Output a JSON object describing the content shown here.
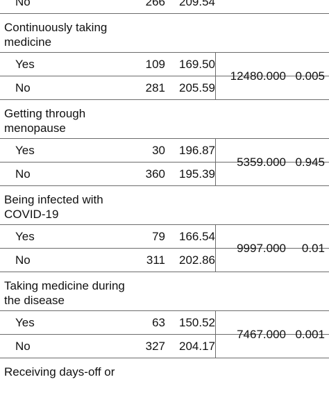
{
  "rows": [
    {
      "type": "sub",
      "label": "No",
      "n": "266",
      "rank": "209.54"
    },
    {
      "type": "cat",
      "label": "Continuously taking medicine"
    },
    {
      "type": "sub",
      "label": "Yes",
      "n": "109",
      "rank": "169.50"
    },
    {
      "type": "sub",
      "label": "No",
      "n": "281",
      "rank": "205.59"
    },
    {
      "type": "cat",
      "label": "Getting through menopause"
    },
    {
      "type": "sub",
      "label": "Yes",
      "n": "30",
      "rank": "196.87"
    },
    {
      "type": "sub",
      "label": "No",
      "n": "360",
      "rank": "195.39"
    },
    {
      "type": "cat",
      "label": "Being infected with COVID-19"
    },
    {
      "type": "sub",
      "label": "Yes",
      "n": "79",
      "rank": "166.54"
    },
    {
      "type": "sub",
      "label": "No",
      "n": "311",
      "rank": "202.86"
    },
    {
      "type": "cat",
      "label": "Taking medicine during the disease"
    },
    {
      "type": "sub",
      "label": "Yes",
      "n": "63",
      "rank": "150.52"
    },
    {
      "type": "sub",
      "label": "No",
      "n": "327",
      "rank": "204.17"
    },
    {
      "type": "cat",
      "label": "Receiving days-off or"
    }
  ],
  "tests": [
    {
      "u": "12480.000",
      "p": "0.005"
    },
    {
      "u": "5359.000",
      "p": "0.945"
    },
    {
      "u": "9997.000",
      "p": "0.01"
    },
    {
      "u": "7467.000",
      "p": "0.001"
    }
  ]
}
